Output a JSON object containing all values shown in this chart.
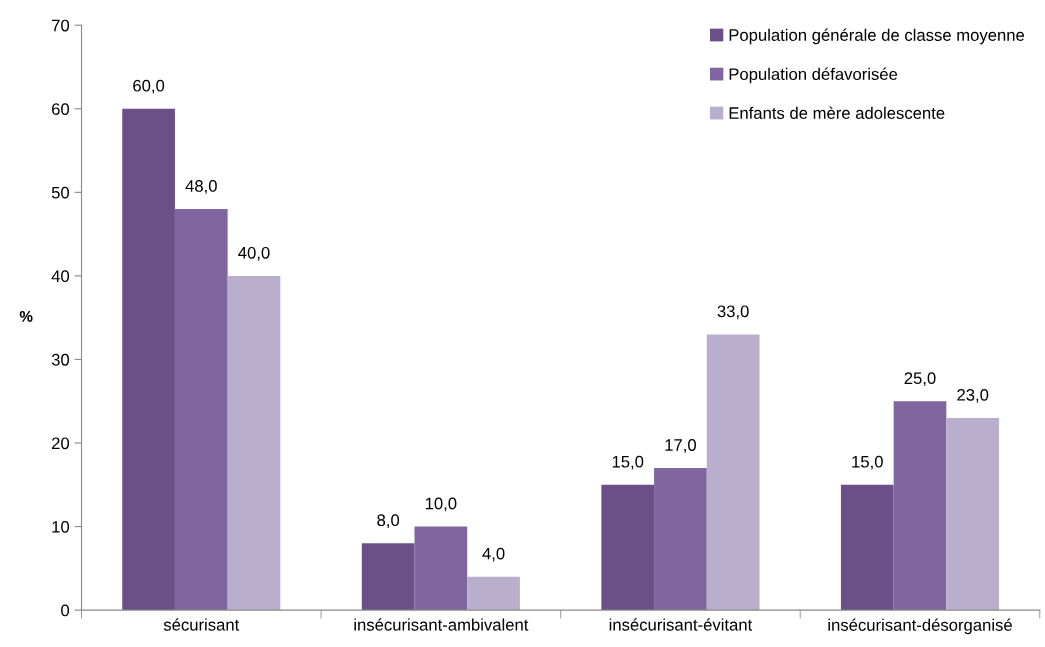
{
  "chart_data": {
    "type": "bar",
    "ylabel": "%",
    "categories": [
      "sécurisant",
      "insécurisant-ambivalent",
      "insécurisant-évitant",
      "insécurisant-désorganisé"
    ],
    "series": [
      {
        "name": "Population générale de classe moyenne",
        "color": "#6a5087",
        "values": [
          60,
          8,
          15,
          15
        ],
        "value_labels": [
          "60,0",
          "8,0",
          "15,0",
          "15,0"
        ]
      },
      {
        "name": "Population défavorisée",
        "color": "#8065a1",
        "values": [
          48,
          10,
          17,
          25
        ],
        "value_labels": [
          "48,0",
          "10,0",
          "17,0",
          "25,0"
        ]
      },
      {
        "name": "Enfants de mère adolescente",
        "color": "#b9aecb",
        "values": [
          40,
          4,
          33,
          23
        ],
        "value_labels": [
          "40,0",
          "4,0",
          "33,0",
          "23,0"
        ]
      }
    ],
    "ylim": [
      0,
      70
    ],
    "yticks": [
      0,
      10,
      20,
      30,
      40,
      50,
      60,
      70
    ],
    "grid": false,
    "legend": "top right"
  }
}
